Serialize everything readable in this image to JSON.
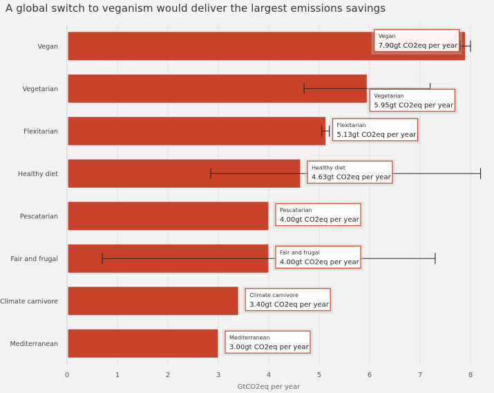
{
  "chart_data": {
    "type": "bar",
    "orientation": "horizontal",
    "title": "A global switch to veganism would deliver the largest emissions savings",
    "xlabel": "GtCO2eq per year",
    "ylabel": "",
    "xlim": [
      0,
      8.2
    ],
    "xticks": [
      0,
      1,
      2,
      3,
      4,
      5,
      6,
      7,
      8
    ],
    "grid": true,
    "bar_color": "#c9432b",
    "categories": [
      "Vegan",
      "Vegetarian",
      "Flexitarian",
      "Healthy diet",
      "Pescatarian",
      "Fair and frugal",
      "Climate carnivore",
      "Mediterranean"
    ],
    "values": [
      7.9,
      5.95,
      5.13,
      4.63,
      4.0,
      4.0,
      3.4,
      3.0
    ],
    "error_low": [
      7.8,
      4.7,
      5.05,
      2.85,
      null,
      0.7,
      null,
      null
    ],
    "error_high": [
      8.0,
      7.2,
      5.2,
      8.2,
      null,
      7.3,
      null,
      null
    ],
    "tooltips": [
      {
        "name": "Vegan",
        "value": "7.90gt CO2eq per year"
      },
      {
        "name": "Vegetarian",
        "value": "5.95gt CO2eq per year"
      },
      {
        "name": "Flexitarian",
        "value": "5.13gt CO2eq per year"
      },
      {
        "name": "Healthy diet",
        "value": "4.63gt CO2eq per year"
      },
      {
        "name": "Pescatarian",
        "value": "4.00gt CO2eq per year"
      },
      {
        "name": "Fair and frugal",
        "value": "4.00gt CO2eq per year"
      },
      {
        "name": "Climate carnivore",
        "value": "3.40gt CO2eq per year"
      },
      {
        "name": "Mediterranean",
        "value": "3.00gt CO2eq per year"
      }
    ]
  }
}
